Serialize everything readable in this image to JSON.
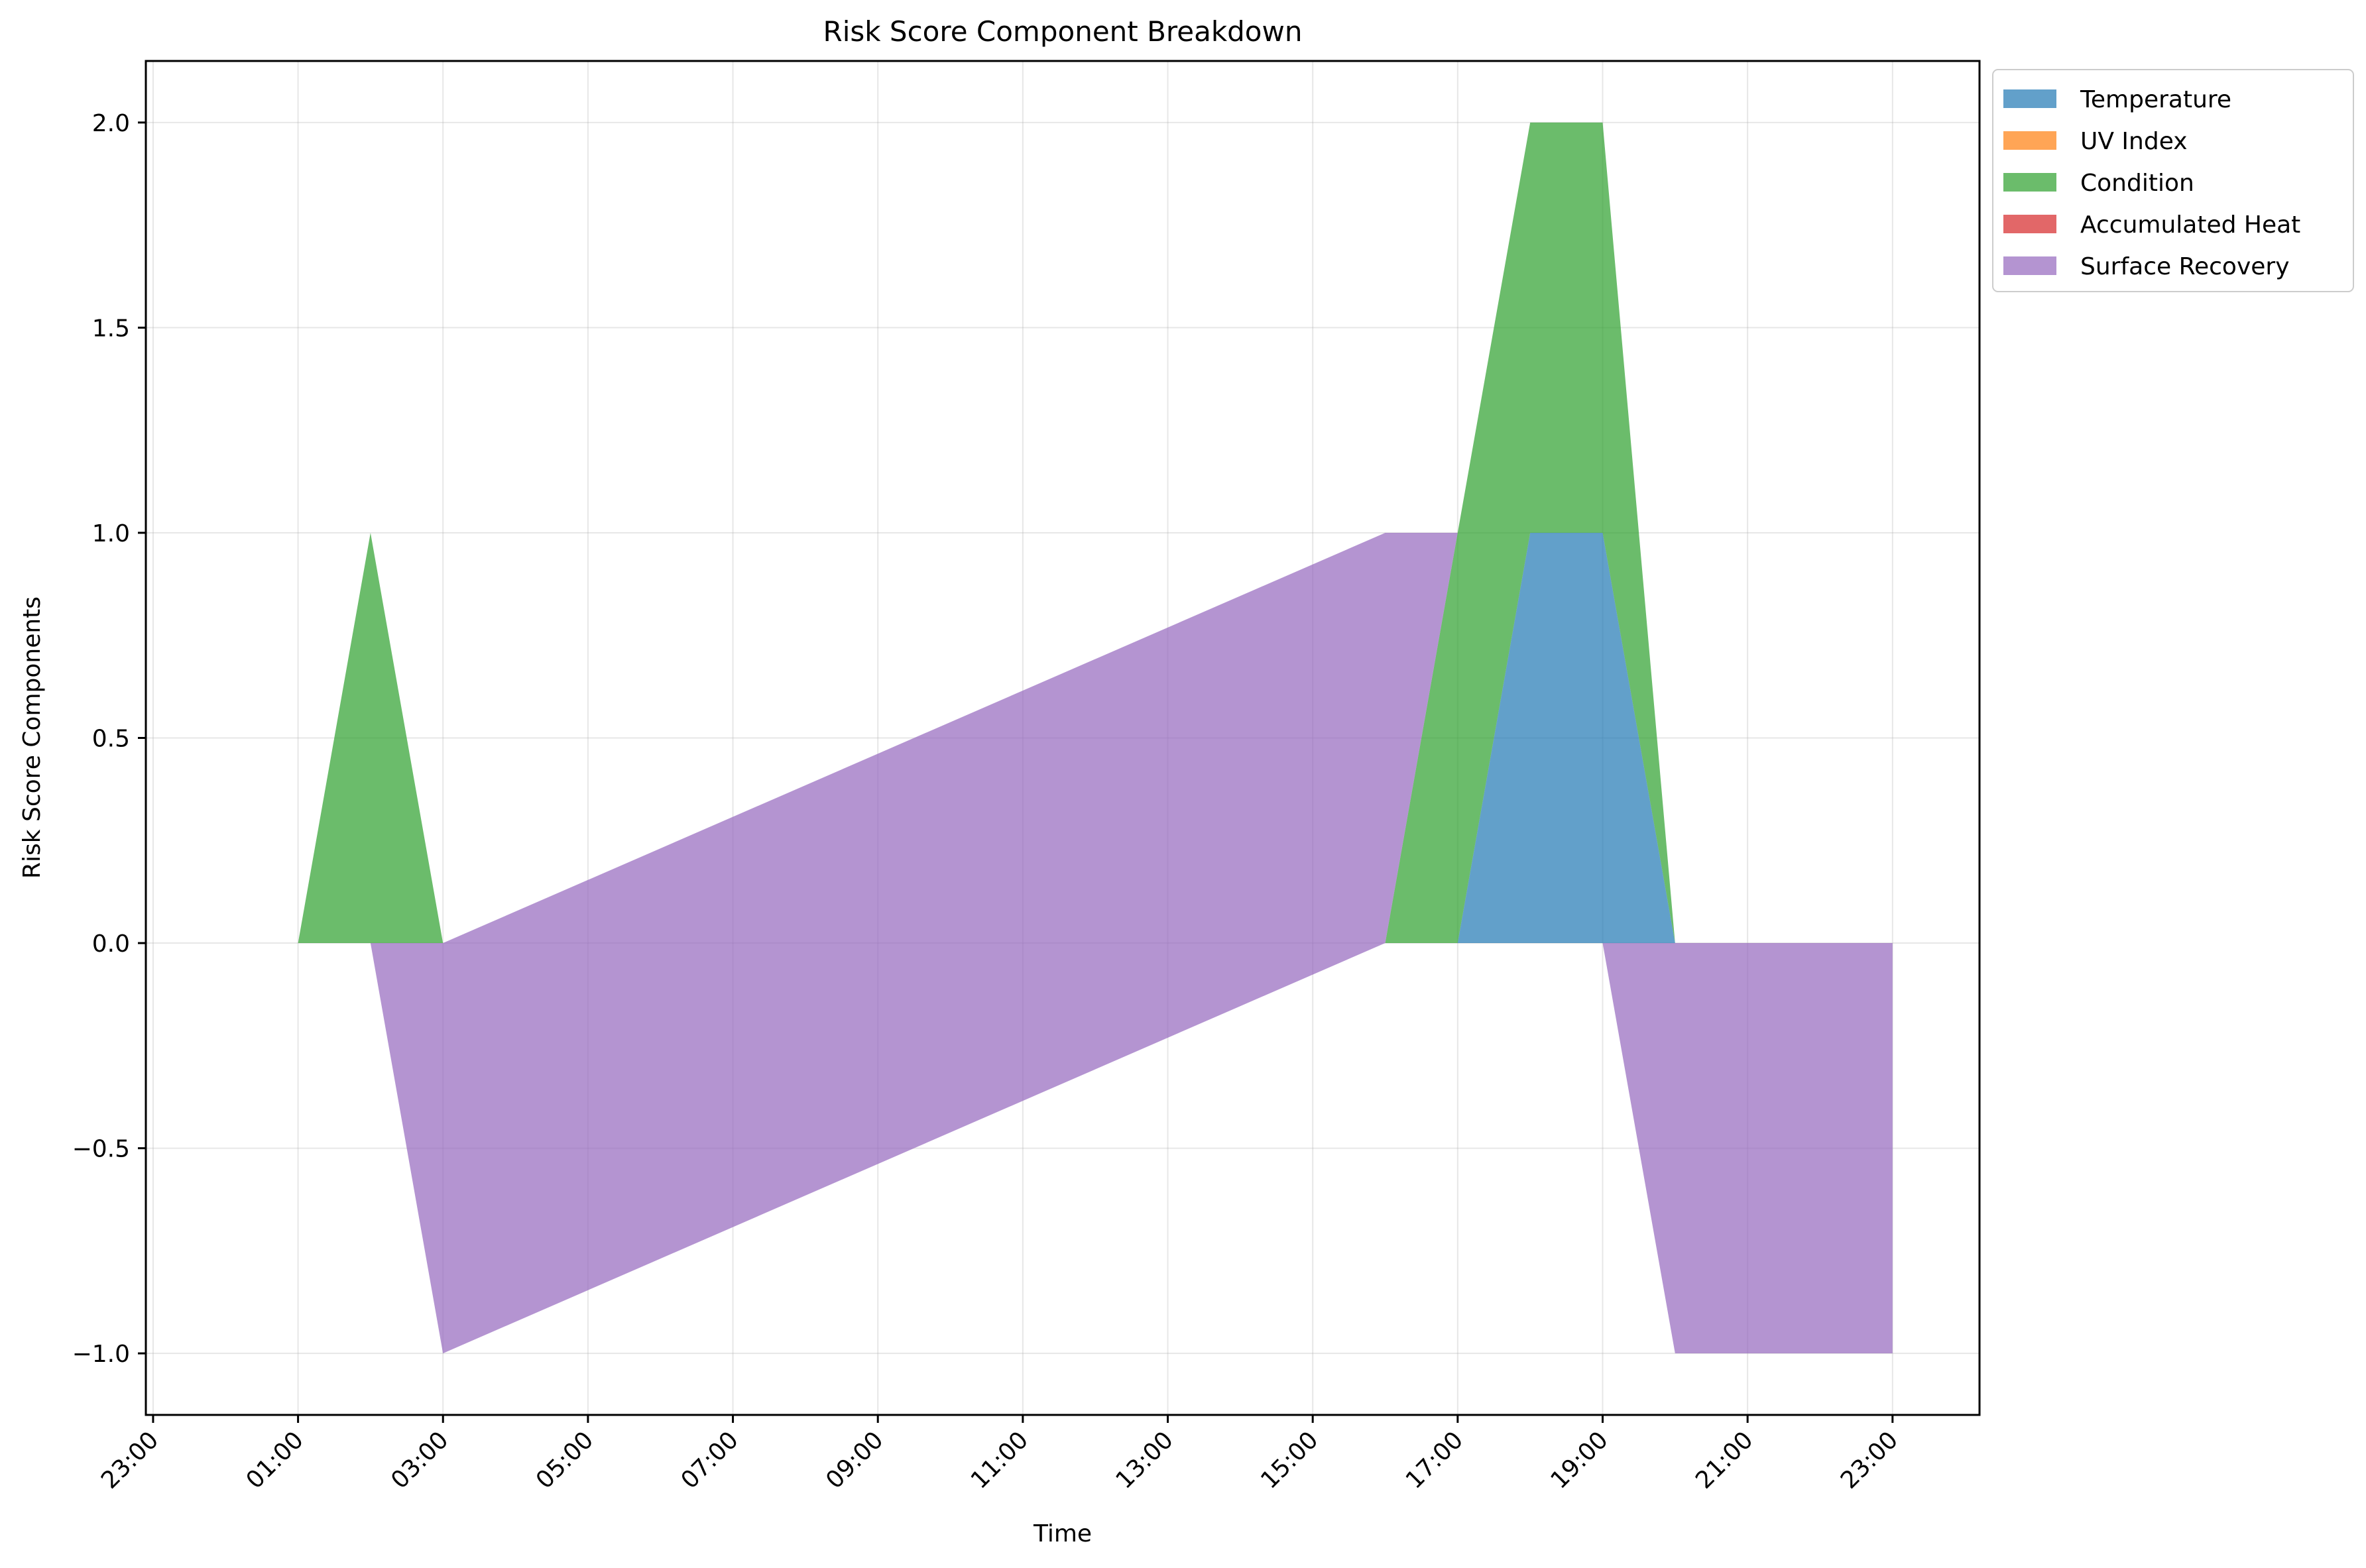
{
  "chart_data": {
    "type": "area",
    "title": "Risk Score Component Breakdown",
    "xlabel": "Time",
    "ylabel": "Risk Score Components",
    "x_tick_labels": [
      "23:00",
      "01:00",
      "03:00",
      "05:00",
      "07:00",
      "09:00",
      "11:00",
      "13:00",
      "15:00",
      "17:00",
      "19:00",
      "21:00",
      "23:00"
    ],
    "x_tick_hours": [
      -1,
      1,
      3,
      5,
      7,
      9,
      11,
      13,
      15,
      17,
      19,
      21,
      23
    ],
    "x_range_hours": [
      -1.1,
      24.2
    ],
    "y_ticks": [
      -1.0,
      -0.5,
      0.0,
      0.5,
      1.0,
      1.5,
      2.0
    ],
    "y_tick_labels": [
      "−1.0",
      "−0.5",
      "0.0",
      "0.5",
      "1.0",
      "1.5",
      "2.0"
    ],
    "ylim": [
      -1.15,
      2.15
    ],
    "grid": true,
    "legend_position": "outside top-right",
    "series": [
      {
        "name": "Temperature",
        "color": "#1f77b4",
        "x": [
          1,
          2,
          3,
          16,
          17,
          18,
          19,
          20,
          23
        ],
        "values": [
          0,
          0,
          0,
          0,
          0,
          1,
          1,
          0,
          0
        ]
      },
      {
        "name": "UV Index",
        "color": "#ff7f0e",
        "x": [
          1,
          2,
          3,
          16,
          17,
          18,
          19,
          20,
          23
        ],
        "values": [
          0,
          0,
          0,
          0,
          0,
          0,
          0,
          0,
          0
        ]
      },
      {
        "name": "Condition",
        "color": "#2ca02c",
        "x": [
          1,
          2,
          3,
          16,
          17,
          18,
          19,
          20,
          23
        ],
        "values": [
          0,
          1,
          0,
          0,
          1,
          1,
          1,
          0,
          0
        ]
      },
      {
        "name": "Accumulated Heat",
        "color": "#d62728",
        "x": [
          1,
          2,
          3,
          16,
          17,
          18,
          19,
          20,
          23
        ],
        "values": [
          0,
          0,
          0,
          0,
          0,
          0,
          0,
          0,
          0
        ]
      },
      {
        "name": "Surface Recovery",
        "color": "#9467bd",
        "x": [
          1,
          2,
          3,
          16,
          17,
          18,
          19,
          20,
          23
        ],
        "values": [
          0,
          0,
          -1,
          1,
          0,
          0,
          0,
          -1,
          -1
        ]
      }
    ]
  }
}
